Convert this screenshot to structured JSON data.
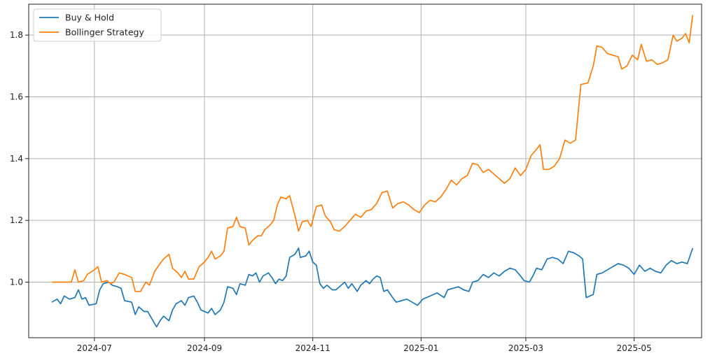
{
  "chart_data": {
    "type": "line",
    "title": "",
    "xlabel": "",
    "ylabel": "",
    "grid": true,
    "legend_placement": "top-left",
    "x_range": [
      "2024-05-25",
      "2025-06-08"
    ],
    "ylim": [
      0.82,
      1.9
    ],
    "x_ticks": [
      "2024-07-01",
      "2024-09-01",
      "2024-11-01",
      "2025-01-01",
      "2025-03-01",
      "2025-05-01"
    ],
    "x_tick_labels": [
      "2024-07",
      "2024-09",
      "2024-11",
      "2025-01",
      "2025-03",
      "2025-05"
    ],
    "y_ticks": [
      1.0,
      1.2,
      1.4,
      1.6,
      1.8
    ],
    "y_tick_labels": [
      "1.0",
      "1.2",
      "1.4",
      "1.6",
      "1.8"
    ],
    "series": [
      {
        "name": "Buy & Hold",
        "color": "#1f77b4",
        "points": [
          [
            "2024-06-07",
            0.935
          ],
          [
            "2024-06-10",
            0.945
          ],
          [
            "2024-06-12",
            0.93
          ],
          [
            "2024-06-14",
            0.955
          ],
          [
            "2024-06-17",
            0.945
          ],
          [
            "2024-06-20",
            0.95
          ],
          [
            "2024-06-22",
            0.975
          ],
          [
            "2024-06-24",
            0.945
          ],
          [
            "2024-06-26",
            0.95
          ],
          [
            "2024-06-28",
            0.925
          ],
          [
            "2024-07-02",
            0.93
          ],
          [
            "2024-07-04",
            0.975
          ],
          [
            "2024-07-06",
            0.995
          ],
          [
            "2024-07-09",
            1.0
          ],
          [
            "2024-07-11",
            0.99
          ],
          [
            "2024-07-14",
            0.985
          ],
          [
            "2024-07-16",
            0.98
          ],
          [
            "2024-07-18",
            0.94
          ],
          [
            "2024-07-22",
            0.935
          ],
          [
            "2024-07-24",
            0.895
          ],
          [
            "2024-07-26",
            0.92
          ],
          [
            "2024-07-29",
            0.905
          ],
          [
            "2024-07-31",
            0.905
          ],
          [
            "2024-08-02",
            0.885
          ],
          [
            "2024-08-05",
            0.855
          ],
          [
            "2024-08-07",
            0.875
          ],
          [
            "2024-08-09",
            0.89
          ],
          [
            "2024-08-12",
            0.875
          ],
          [
            "2024-08-14",
            0.91
          ],
          [
            "2024-08-16",
            0.93
          ],
          [
            "2024-08-19",
            0.94
          ],
          [
            "2024-08-21",
            0.925
          ],
          [
            "2024-08-23",
            0.95
          ],
          [
            "2024-08-26",
            0.955
          ],
          [
            "2024-08-28",
            0.935
          ],
          [
            "2024-08-30",
            0.91
          ],
          [
            "2024-09-03",
            0.9
          ],
          [
            "2024-09-05",
            0.915
          ],
          [
            "2024-09-07",
            0.895
          ],
          [
            "2024-09-10",
            0.91
          ],
          [
            "2024-09-12",
            0.935
          ],
          [
            "2024-09-14",
            0.985
          ],
          [
            "2024-09-17",
            0.98
          ],
          [
            "2024-09-19",
            0.96
          ],
          [
            "2024-09-21",
            0.995
          ],
          [
            "2024-09-24",
            0.99
          ],
          [
            "2024-09-26",
            1.025
          ],
          [
            "2024-09-28",
            1.02
          ],
          [
            "2024-09-30",
            1.03
          ],
          [
            "2024-10-02",
            1.0
          ],
          [
            "2024-10-04",
            1.02
          ],
          [
            "2024-10-07",
            1.03
          ],
          [
            "2024-10-09",
            1.015
          ],
          [
            "2024-10-11",
            0.995
          ],
          [
            "2024-10-13",
            1.01
          ],
          [
            "2024-10-15",
            1.005
          ],
          [
            "2024-10-17",
            1.02
          ],
          [
            "2024-10-19",
            1.08
          ],
          [
            "2024-10-22",
            1.09
          ],
          [
            "2024-10-24",
            1.11
          ],
          [
            "2024-10-25",
            1.08
          ],
          [
            "2024-10-28",
            1.085
          ],
          [
            "2024-10-30",
            1.1
          ],
          [
            "2024-11-01",
            1.065
          ],
          [
            "2024-11-03",
            1.055
          ],
          [
            "2024-11-05",
            0.995
          ],
          [
            "2024-11-07",
            0.98
          ],
          [
            "2024-11-09",
            0.99
          ],
          [
            "2024-11-12",
            0.975
          ],
          [
            "2024-11-14",
            0.975
          ],
          [
            "2024-11-16",
            0.985
          ],
          [
            "2024-11-19",
            1.0
          ],
          [
            "2024-11-21",
            0.98
          ],
          [
            "2024-11-23",
            0.995
          ],
          [
            "2024-11-26",
            0.97
          ],
          [
            "2024-11-28",
            0.99
          ],
          [
            "2024-12-01",
            1.005
          ],
          [
            "2024-12-03",
            0.995
          ],
          [
            "2024-12-05",
            1.01
          ],
          [
            "2024-12-07",
            1.02
          ],
          [
            "2024-12-09",
            1.015
          ],
          [
            "2024-12-11",
            0.97
          ],
          [
            "2024-12-13",
            0.975
          ],
          [
            "2024-12-16",
            0.95
          ],
          [
            "2024-12-18",
            0.935
          ],
          [
            "2024-12-21",
            0.94
          ],
          [
            "2024-12-24",
            0.945
          ],
          [
            "2024-12-27",
            0.935
          ],
          [
            "2024-12-30",
            0.925
          ],
          [
            "2025-01-02",
            0.945
          ],
          [
            "2025-01-06",
            0.955
          ],
          [
            "2025-01-10",
            0.965
          ],
          [
            "2025-01-14",
            0.95
          ],
          [
            "2025-01-16",
            0.975
          ],
          [
            "2025-01-19",
            0.98
          ],
          [
            "2025-01-22",
            0.985
          ],
          [
            "2025-01-25",
            0.975
          ],
          [
            "2025-01-28",
            0.97
          ],
          [
            "2025-01-30",
            1.0
          ],
          [
            "2025-02-02",
            1.005
          ],
          [
            "2025-02-05",
            1.025
          ],
          [
            "2025-02-08",
            1.015
          ],
          [
            "2025-02-11",
            1.03
          ],
          [
            "2025-02-14",
            1.02
          ],
          [
            "2025-02-17",
            1.035
          ],
          [
            "2025-02-20",
            1.045
          ],
          [
            "2025-02-23",
            1.04
          ],
          [
            "2025-02-26",
            1.02
          ],
          [
            "2025-02-28",
            1.005
          ],
          [
            "2025-03-03",
            1.0
          ],
          [
            "2025-03-05",
            1.02
          ],
          [
            "2025-03-07",
            1.045
          ],
          [
            "2025-03-10",
            1.04
          ],
          [
            "2025-03-13",
            1.075
          ],
          [
            "2025-03-16",
            1.08
          ],
          [
            "2025-03-19",
            1.075
          ],
          [
            "2025-03-22",
            1.06
          ],
          [
            "2025-03-25",
            1.1
          ],
          [
            "2025-03-28",
            1.095
          ],
          [
            "2025-03-31",
            1.085
          ],
          [
            "2025-04-02",
            1.075
          ],
          [
            "2025-04-04",
            0.95
          ],
          [
            "2025-04-06",
            0.955
          ],
          [
            "2025-04-08",
            0.96
          ],
          [
            "2025-04-10",
            1.025
          ],
          [
            "2025-04-13",
            1.03
          ],
          [
            "2025-04-16",
            1.04
          ],
          [
            "2025-04-19",
            1.05
          ],
          [
            "2025-04-22",
            1.06
          ],
          [
            "2025-04-25",
            1.055
          ],
          [
            "2025-04-28",
            1.045
          ],
          [
            "2025-05-01",
            1.025
          ],
          [
            "2025-05-04",
            1.055
          ],
          [
            "2025-05-07",
            1.035
          ],
          [
            "2025-05-10",
            1.045
          ],
          [
            "2025-05-13",
            1.035
          ],
          [
            "2025-05-16",
            1.03
          ],
          [
            "2025-05-19",
            1.055
          ],
          [
            "2025-05-22",
            1.07
          ],
          [
            "2025-05-25",
            1.06
          ],
          [
            "2025-05-28",
            1.065
          ],
          [
            "2025-05-31",
            1.06
          ],
          [
            "2025-06-03",
            1.11
          ]
        ]
      },
      {
        "name": "Bollinger Strategy",
        "color": "#ff7f0e",
        "points": [
          [
            "2024-06-07",
            1.0
          ],
          [
            "2024-06-14",
            1.0
          ],
          [
            "2024-06-18",
            1.0
          ],
          [
            "2024-06-20",
            1.04
          ],
          [
            "2024-06-22",
            1.0
          ],
          [
            "2024-06-25",
            1.005
          ],
          [
            "2024-06-27",
            1.025
          ],
          [
            "2024-07-01",
            1.04
          ],
          [
            "2024-07-03",
            1.05
          ],
          [
            "2024-07-05",
            1.0
          ],
          [
            "2024-07-08",
            1.005
          ],
          [
            "2024-07-10",
            0.995
          ],
          [
            "2024-07-12",
            1.0
          ],
          [
            "2024-07-15",
            1.03
          ],
          [
            "2024-07-18",
            1.025
          ],
          [
            "2024-07-22",
            1.015
          ],
          [
            "2024-07-24",
            0.97
          ],
          [
            "2024-07-27",
            0.97
          ],
          [
            "2024-07-30",
            1.0
          ],
          [
            "2024-08-01",
            0.99
          ],
          [
            "2024-08-04",
            1.035
          ],
          [
            "2024-08-07",
            1.06
          ],
          [
            "2024-08-09",
            1.075
          ],
          [
            "2024-08-12",
            1.09
          ],
          [
            "2024-08-14",
            1.045
          ],
          [
            "2024-08-17",
            1.03
          ],
          [
            "2024-08-19",
            1.015
          ],
          [
            "2024-08-21",
            1.035
          ],
          [
            "2024-08-23",
            1.01
          ],
          [
            "2024-08-26",
            1.01
          ],
          [
            "2024-08-29",
            1.05
          ],
          [
            "2024-09-01",
            1.065
          ],
          [
            "2024-09-03",
            1.08
          ],
          [
            "2024-09-05",
            1.1
          ],
          [
            "2024-09-07",
            1.075
          ],
          [
            "2024-09-10",
            1.085
          ],
          [
            "2024-09-12",
            1.1
          ],
          [
            "2024-09-14",
            1.175
          ],
          [
            "2024-09-17",
            1.18
          ],
          [
            "2024-09-19",
            1.21
          ],
          [
            "2024-09-21",
            1.18
          ],
          [
            "2024-09-24",
            1.175
          ],
          [
            "2024-09-26",
            1.12
          ],
          [
            "2024-09-28",
            1.135
          ],
          [
            "2024-10-01",
            1.15
          ],
          [
            "2024-10-03",
            1.15
          ],
          [
            "2024-10-05",
            1.17
          ],
          [
            "2024-10-08",
            1.185
          ],
          [
            "2024-10-10",
            1.2
          ],
          [
            "2024-10-12",
            1.25
          ],
          [
            "2024-10-14",
            1.275
          ],
          [
            "2024-10-17",
            1.27
          ],
          [
            "2024-10-19",
            1.28
          ],
          [
            "2024-10-22",
            1.215
          ],
          [
            "2024-10-24",
            1.165
          ],
          [
            "2024-10-26",
            1.195
          ],
          [
            "2024-10-29",
            1.2
          ],
          [
            "2024-10-31",
            1.18
          ],
          [
            "2024-11-03",
            1.245
          ],
          [
            "2024-11-06",
            1.25
          ],
          [
            "2024-11-08",
            1.215
          ],
          [
            "2024-11-11",
            1.195
          ],
          [
            "2024-11-13",
            1.17
          ],
          [
            "2024-11-16",
            1.165
          ],
          [
            "2024-11-19",
            1.18
          ],
          [
            "2024-11-22",
            1.2
          ],
          [
            "2024-11-25",
            1.22
          ],
          [
            "2024-11-28",
            1.21
          ],
          [
            "2024-12-01",
            1.23
          ],
          [
            "2024-12-04",
            1.235
          ],
          [
            "2024-12-07",
            1.255
          ],
          [
            "2024-12-10",
            1.29
          ],
          [
            "2024-12-13",
            1.295
          ],
          [
            "2024-12-16",
            1.24
          ],
          [
            "2024-12-19",
            1.255
          ],
          [
            "2024-12-22",
            1.26
          ],
          [
            "2024-12-25",
            1.25
          ],
          [
            "2024-12-28",
            1.235
          ],
          [
            "2024-12-31",
            1.225
          ],
          [
            "2025-01-03",
            1.25
          ],
          [
            "2025-01-06",
            1.265
          ],
          [
            "2025-01-09",
            1.26
          ],
          [
            "2025-01-12",
            1.275
          ],
          [
            "2025-01-15",
            1.3
          ],
          [
            "2025-01-18",
            1.33
          ],
          [
            "2025-01-21",
            1.315
          ],
          [
            "2025-01-24",
            1.335
          ],
          [
            "2025-01-27",
            1.345
          ],
          [
            "2025-01-30",
            1.385
          ],
          [
            "2025-02-02",
            1.38
          ],
          [
            "2025-02-05",
            1.355
          ],
          [
            "2025-02-08",
            1.365
          ],
          [
            "2025-02-11",
            1.35
          ],
          [
            "2025-02-14",
            1.335
          ],
          [
            "2025-02-17",
            1.32
          ],
          [
            "2025-02-20",
            1.335
          ],
          [
            "2025-02-23",
            1.37
          ],
          [
            "2025-02-26",
            1.345
          ],
          [
            "2025-03-01",
            1.365
          ],
          [
            "2025-03-04",
            1.41
          ],
          [
            "2025-03-07",
            1.43
          ],
          [
            "2025-03-09",
            1.445
          ],
          [
            "2025-03-11",
            1.365
          ],
          [
            "2025-03-14",
            1.365
          ],
          [
            "2025-03-17",
            1.375
          ],
          [
            "2025-03-20",
            1.4
          ],
          [
            "2025-03-23",
            1.46
          ],
          [
            "2025-03-26",
            1.45
          ],
          [
            "2025-03-29",
            1.46
          ],
          [
            "2025-04-01",
            1.64
          ],
          [
            "2025-04-05",
            1.645
          ],
          [
            "2025-04-08",
            1.7
          ],
          [
            "2025-04-10",
            1.765
          ],
          [
            "2025-04-13",
            1.76
          ],
          [
            "2025-04-16",
            1.74
          ],
          [
            "2025-04-19",
            1.735
          ],
          [
            "2025-04-22",
            1.73
          ],
          [
            "2025-04-24",
            1.69
          ],
          [
            "2025-04-27",
            1.7
          ],
          [
            "2025-04-30",
            1.735
          ],
          [
            "2025-05-03",
            1.72
          ],
          [
            "2025-05-05",
            1.77
          ],
          [
            "2025-05-08",
            1.715
          ],
          [
            "2025-05-11",
            1.72
          ],
          [
            "2025-05-14",
            1.705
          ],
          [
            "2025-05-17",
            1.71
          ],
          [
            "2025-05-20",
            1.72
          ],
          [
            "2025-05-23",
            1.8
          ],
          [
            "2025-05-25",
            1.78
          ],
          [
            "2025-05-28",
            1.79
          ],
          [
            "2025-05-30",
            1.805
          ],
          [
            "2025-06-01",
            1.775
          ],
          [
            "2025-06-03",
            1.865
          ]
        ]
      }
    ]
  }
}
